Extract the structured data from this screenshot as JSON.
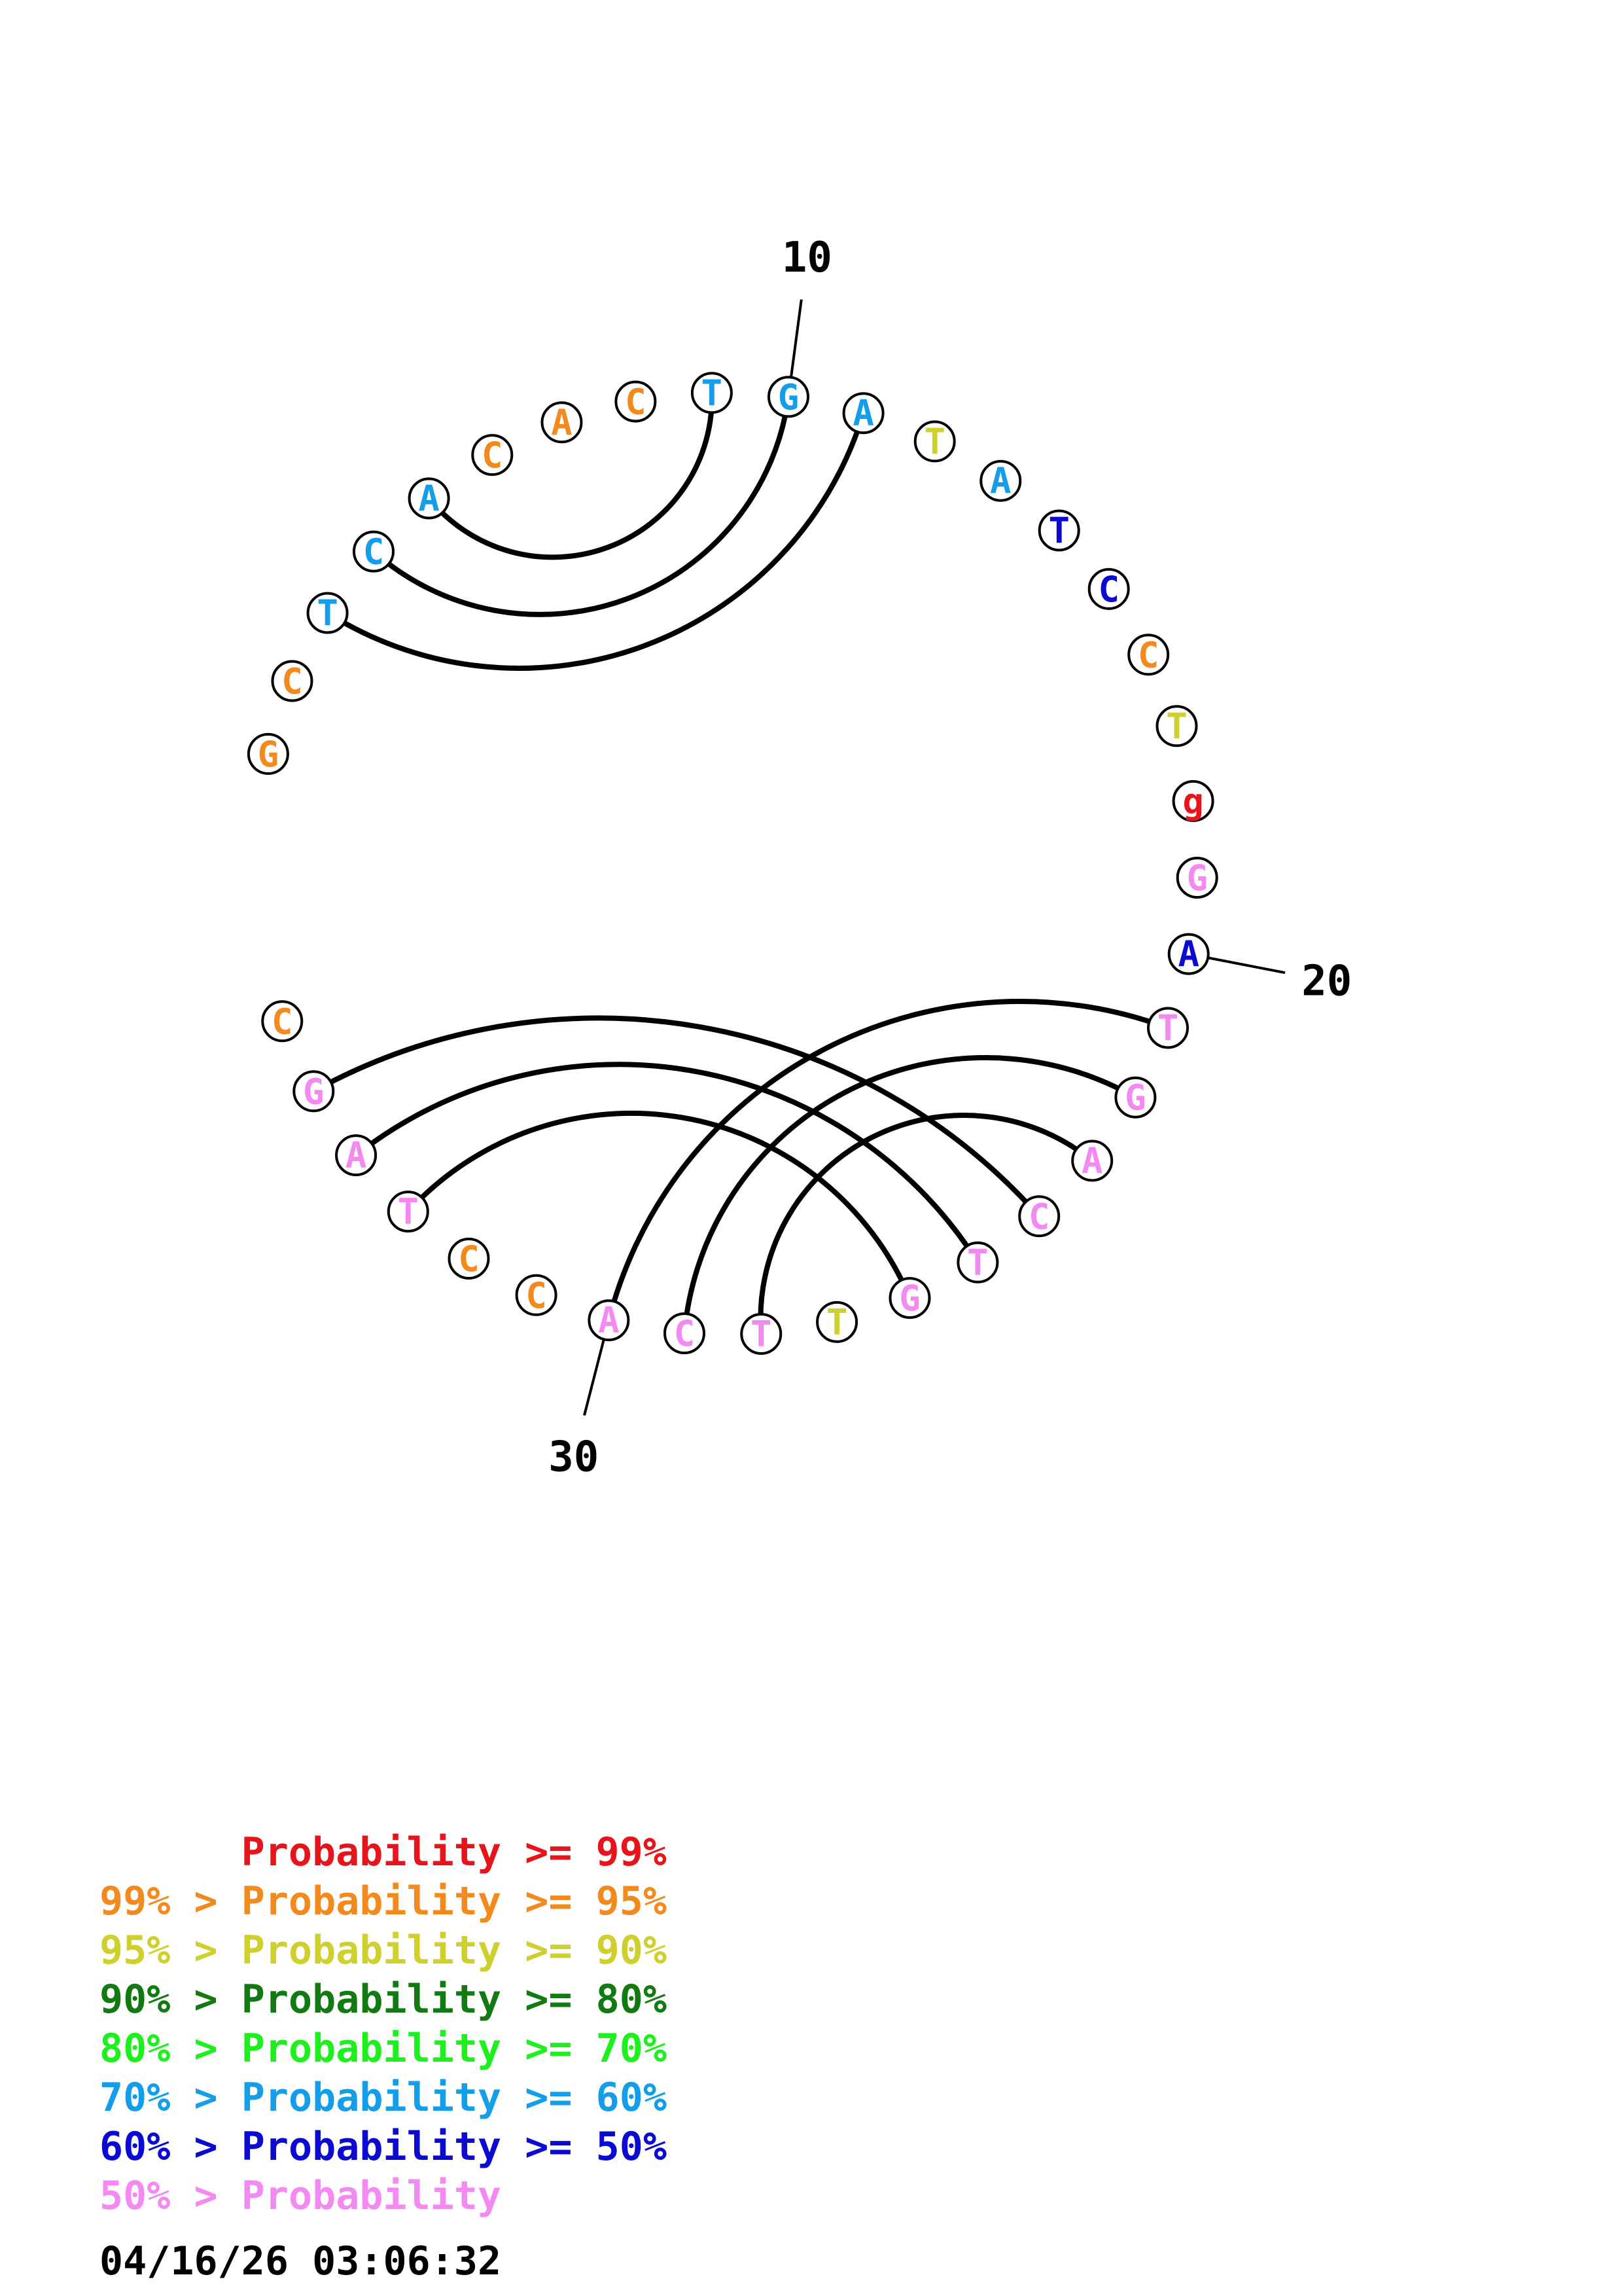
{
  "colors": {
    "p99": "#e8141c",
    "p95": "#f28a1e",
    "p90": "#cfcf2e",
    "p80": "#127a12",
    "p70": "#1ef01e",
    "p60": "#149eea",
    "p50": "#0a0ad0",
    "plow": "#f28af2"
  },
  "nucleotides": [
    {
      "n": 1,
      "base": "G",
      "color": "p95"
    },
    {
      "n": 2,
      "base": "C",
      "color": "p95"
    },
    {
      "n": 3,
      "base": "T",
      "color": "p60"
    },
    {
      "n": 4,
      "base": "C",
      "color": "p60"
    },
    {
      "n": 5,
      "base": "A",
      "color": "p60"
    },
    {
      "n": 6,
      "base": "C",
      "color": "p95"
    },
    {
      "n": 7,
      "base": "A",
      "color": "p95"
    },
    {
      "n": 8,
      "base": "C",
      "color": "p95"
    },
    {
      "n": 9,
      "base": "T",
      "color": "p60"
    },
    {
      "n": 10,
      "base": "G",
      "color": "p60"
    },
    {
      "n": 11,
      "base": "A",
      "color": "p60"
    },
    {
      "n": 12,
      "base": "T",
      "color": "p90"
    },
    {
      "n": 13,
      "base": "A",
      "color": "p60"
    },
    {
      "n": 14,
      "base": "T",
      "color": "p50"
    },
    {
      "n": 15,
      "base": "C",
      "color": "p50"
    },
    {
      "n": 16,
      "base": "C",
      "color": "p95"
    },
    {
      "n": 17,
      "base": "T",
      "color": "p90"
    },
    {
      "n": 18,
      "base": "g",
      "color": "p99"
    },
    {
      "n": 19,
      "base": "G",
      "color": "plow"
    },
    {
      "n": 20,
      "base": "A",
      "color": "p50"
    },
    {
      "n": 21,
      "base": "T",
      "color": "plow"
    },
    {
      "n": 22,
      "base": "G",
      "color": "plow"
    },
    {
      "n": 23,
      "base": "A",
      "color": "plow"
    },
    {
      "n": 24,
      "base": "C",
      "color": "plow"
    },
    {
      "n": 25,
      "base": "T",
      "color": "plow"
    },
    {
      "n": 26,
      "base": "G",
      "color": "plow"
    },
    {
      "n": 27,
      "base": "T",
      "color": "p90"
    },
    {
      "n": 28,
      "base": "T",
      "color": "plow"
    },
    {
      "n": 29,
      "base": "C",
      "color": "plow"
    },
    {
      "n": 30,
      "base": "A",
      "color": "plow"
    },
    {
      "n": 31,
      "base": "C",
      "color": "p95"
    },
    {
      "n": 32,
      "base": "C",
      "color": "p95"
    },
    {
      "n": 33,
      "base": "T",
      "color": "plow"
    },
    {
      "n": 34,
      "base": "A",
      "color": "plow"
    },
    {
      "n": 35,
      "base": "G",
      "color": "plow"
    },
    {
      "n": 36,
      "base": "C",
      "color": "p95"
    }
  ],
  "pairs": [
    [
      3,
      11
    ],
    [
      4,
      10
    ],
    [
      5,
      9
    ],
    [
      21,
      30
    ],
    [
      22,
      29
    ],
    [
      23,
      28
    ],
    [
      24,
      35
    ],
    [
      25,
      34
    ],
    [
      26,
      33
    ]
  ],
  "ticks": [
    {
      "n": 10,
      "label": "10"
    },
    {
      "n": 20,
      "label": "20"
    },
    {
      "n": 30,
      "label": "30"
    }
  ],
  "legend": [
    {
      "prefix": "",
      "text": "Probability >= 99%",
      "color": "p99"
    },
    {
      "prefix": "99% > ",
      "text": "Probability >= 95%",
      "color": "p95"
    },
    {
      "prefix": "95% > ",
      "text": "Probability >= 90%",
      "color": "p90"
    },
    {
      "prefix": "90% > ",
      "text": "Probability >= 80%",
      "color": "p80"
    },
    {
      "prefix": "80% > ",
      "text": "Probability >= 70%",
      "color": "p70"
    },
    {
      "prefix": "70% > ",
      "text": "Probability >= 60%",
      "color": "p60"
    },
    {
      "prefix": "60% > ",
      "text": "Probability >= 50%",
      "color": "p50"
    },
    {
      "prefix": "50% > ",
      "text": "Probability",
      "color": "plow"
    }
  ],
  "timestamp": "04/16/26 03:06:32"
}
